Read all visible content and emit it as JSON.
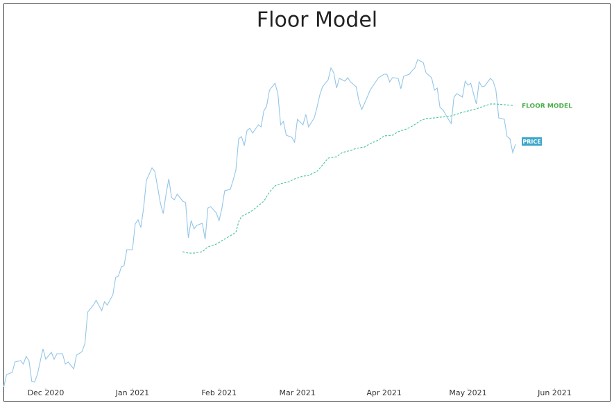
{
  "chart_data": {
    "type": "line",
    "title": "Floor Model",
    "xlim": [
      -15,
      200
    ],
    "ylim": [
      0,
      100
    ],
    "xticks": [
      {
        "value": 0,
        "label": "Dec 2020"
      },
      {
        "value": 31,
        "label": "Jan 2021"
      },
      {
        "value": 62,
        "label": "Feb 2021"
      },
      {
        "value": 90,
        "label": "Mar 2021"
      },
      {
        "value": 121,
        "label": "Apr 2021"
      },
      {
        "value": 151,
        "label": "May 2021"
      },
      {
        "value": 182,
        "label": "Jun 2021"
      }
    ],
    "series": [
      {
        "name": "PRICE",
        "color": "#93c6e8",
        "style": "solid",
        "label_background": "#3aa6c9",
        "x": [
          -15,
          -14,
          -12,
          -11,
          -9,
          -8,
          -7,
          -6,
          -5,
          -4,
          -3,
          -1,
          0,
          2,
          3,
          4,
          6,
          7,
          8,
          10,
          11,
          13,
          14,
          15,
          17,
          18,
          20,
          21,
          22,
          24,
          25,
          26,
          27,
          28,
          29,
          31,
          32,
          33,
          34,
          35,
          36,
          38,
          39,
          40,
          41,
          42,
          43,
          44,
          45,
          46,
          47,
          49,
          50,
          51,
          52,
          53,
          54,
          56,
          57,
          58,
          59,
          61,
          62,
          63,
          64,
          66,
          67,
          68,
          69,
          70,
          71,
          72,
          73,
          74,
          76,
          77,
          78,
          79,
          80,
          82,
          83,
          84,
          85,
          86,
          88,
          89,
          90,
          92,
          93,
          94,
          96,
          97,
          98,
          99,
          101,
          102,
          103,
          104,
          105,
          107,
          108,
          109,
          111,
          112,
          113,
          115,
          116,
          118,
          119,
          121,
          122,
          123,
          124,
          126,
          127,
          128,
          130,
          131,
          132,
          133,
          135,
          136,
          138,
          139,
          140,
          141,
          142,
          144,
          145,
          146,
          147,
          149,
          150,
          151,
          152,
          154,
          155,
          156,
          157,
          159,
          160,
          161,
          162,
          164,
          165,
          166,
          167,
          168
        ],
        "values": [
          0.4,
          4,
          4.6,
          7.6,
          8,
          7,
          9.2,
          8,
          2,
          1.8,
          4,
          11.4,
          8.4,
          10.4,
          8.4,
          10,
          10,
          7,
          7.6,
          5.6,
          9.6,
          10.6,
          13,
          22,
          24,
          25.4,
          22.4,
          25,
          24,
          27,
          32,
          32.4,
          35,
          35.4,
          40,
          40,
          47.4,
          48.6,
          46.4,
          52,
          60,
          63.6,
          62.6,
          58,
          53.4,
          50.4,
          56,
          60.4,
          55,
          54.4,
          56,
          54,
          53.6,
          43.4,
          48.4,
          46,
          47,
          47.6,
          43,
          52,
          52.4,
          50.6,
          48.4,
          52,
          57,
          57.4,
          60,
          63,
          72,
          72.6,
          70,
          74.4,
          75,
          73.6,
          76,
          75.4,
          80,
          81.4,
          86,
          88,
          85,
          76,
          77,
          73,
          72.4,
          71,
          77.6,
          76,
          79,
          75.4,
          78,
          81,
          84.6,
          87,
          89,
          92.4,
          91,
          86.6,
          89.4,
          88.6,
          89.6,
          88.4,
          87,
          83,
          80.4,
          84,
          86,
          88.4,
          89.6,
          90.6,
          90.6,
          88.4,
          89.6,
          89.4,
          86.4,
          90,
          90.6,
          91.6,
          92.4,
          94.8,
          94,
          91,
          89.6,
          86,
          86.6,
          81,
          80.4,
          77.6,
          76.4,
          84,
          85,
          84,
          88.6,
          87.4,
          88,
          82,
          88.4,
          87,
          87.2,
          89.4,
          88.6,
          86,
          78,
          77.6,
          72.6,
          72,
          68,
          70.4
        ]
      },
      {
        "name": "FLOOR MODEL",
        "color": "#4fc99a",
        "style": "dashed",
        "x": [
          49,
          51,
          53,
          56,
          58,
          61,
          63,
          66,
          68,
          69,
          70,
          73,
          75,
          78,
          80,
          82,
          84,
          87,
          89,
          92,
          94,
          97,
          99,
          101,
          104,
          106,
          109,
          111,
          114,
          116,
          119,
          121,
          124,
          126,
          129,
          131,
          134,
          136,
          139,
          141,
          144,
          146,
          149,
          151,
          154,
          156,
          159,
          161,
          164,
          167
        ],
        "values": [
          39.4,
          39,
          39,
          39.4,
          40.8,
          41.6,
          42.6,
          44,
          45,
          48,
          49.6,
          50.8,
          52,
          54,
          56.6,
          58.4,
          59,
          59.6,
          60.4,
          61.2,
          61.4,
          62.6,
          64.4,
          66.4,
          66.8,
          68,
          68.6,
          69.2,
          69.6,
          70.6,
          71.6,
          72.8,
          73,
          74,
          74.8,
          75.6,
          77.2,
          77.8,
          78,
          78.2,
          78.4,
          78.8,
          79.6,
          80,
          80.6,
          81.2,
          82,
          82,
          81.8,
          81.6
        ]
      }
    ]
  }
}
